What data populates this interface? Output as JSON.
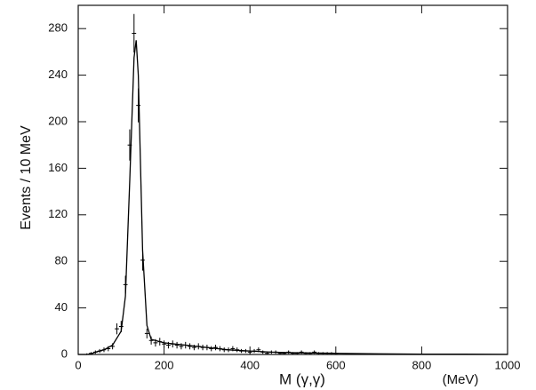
{
  "chart_data": {
    "type": "scatter",
    "ylabel": "Events / 10 MeV",
    "xlabel": "M (γ,γ)",
    "x_unit": "(MeV)",
    "x": [
      20,
      30,
      40,
      50,
      60,
      70,
      80,
      90,
      100,
      110,
      120,
      130,
      140,
      150,
      160,
      170,
      180,
      190,
      200,
      210,
      220,
      230,
      240,
      250,
      260,
      270,
      280,
      290,
      300,
      310,
      320,
      330,
      340,
      350,
      360,
      370,
      380,
      390,
      400,
      410,
      420,
      430,
      440,
      450,
      460,
      470,
      480,
      490,
      500,
      510,
      520,
      530,
      540,
      550,
      560,
      570,
      580,
      590,
      600
    ],
    "values": [
      0,
      1,
      2,
      3,
      4,
      5,
      7,
      22,
      24,
      60,
      180,
      276,
      214,
      81,
      18,
      12,
      10,
      11,
      9,
      8,
      9,
      8,
      7,
      8,
      7,
      6,
      7,
      6,
      6,
      5,
      6,
      5,
      4,
      4,
      5,
      4,
      3,
      3,
      2,
      3,
      4,
      2,
      1,
      2,
      2,
      1,
      1,
      2,
      1,
      1,
      2,
      1,
      1,
      2,
      1,
      1,
      1,
      1,
      0
    ],
    "errors": [
      1,
      1,
      1.4,
      1.7,
      2,
      2.2,
      2.6,
      4.7,
      4.9,
      7.7,
      13.4,
      16.6,
      14.6,
      9,
      4.2,
      3.5,
      3.2,
      3.3,
      3,
      2.8,
      3,
      2.8,
      2.6,
      2.8,
      2.6,
      2.4,
      2.6,
      2.4,
      2.4,
      2.2,
      2.4,
      2.2,
      2,
      2,
      2.2,
      2,
      1.7,
      1.7,
      1.4,
      1.7,
      2,
      1.4,
      1,
      1.4,
      1.4,
      1,
      1,
      1.4,
      1,
      1,
      1.4,
      1,
      1,
      1.4,
      1,
      1,
      1,
      1,
      1
    ],
    "fit": {
      "x": [
        0,
        20,
        30,
        40,
        60,
        80,
        100,
        110,
        120,
        130,
        135,
        140,
        150,
        160,
        170,
        200,
        250,
        300,
        350,
        400,
        450,
        500,
        600,
        700,
        800,
        900,
        1000
      ],
      "values": [
        0,
        0,
        0.5,
        2,
        4,
        8,
        20,
        50,
        150,
        255,
        270,
        240,
        90,
        25,
        13,
        10,
        8,
        6,
        4,
        3,
        2,
        1.5,
        1,
        0.5,
        0.3,
        0.2,
        0.1
      ]
    },
    "color": "#000000",
    "xlim": [
      0,
      1000
    ],
    "xticks": [
      0,
      200,
      400,
      600,
      800,
      1000
    ],
    "ylim": [
      0,
      300
    ],
    "yticks": [
      0,
      40,
      80,
      120,
      160,
      200,
      240,
      280
    ]
  }
}
